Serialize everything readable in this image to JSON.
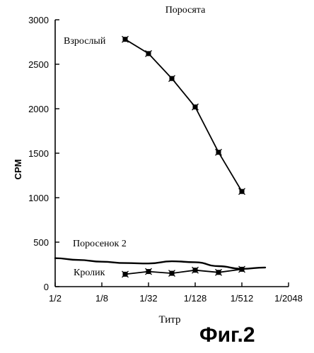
{
  "figure_label": "Фиг.2",
  "chart_data": {
    "type": "line",
    "title": "Поросята",
    "xlabel": "Титр",
    "ylabel": "CPM",
    "x_scale": "log2",
    "x_ticks": [
      "1/2",
      "1/8",
      "1/32",
      "1/128",
      "1/512",
      "1/2048"
    ],
    "y_ticks": [
      "0",
      "500",
      "1000",
      "1500",
      "2000",
      "2500",
      "3000"
    ],
    "ylim": [
      0,
      3000
    ],
    "series": [
      {
        "name": "Взрослый",
        "markers": true,
        "x": [
          "1/16",
          "1/32",
          "1/64",
          "1/128",
          "1/256",
          "1/512"
        ],
        "y": [
          2780,
          2620,
          2340,
          2020,
          1510,
          1070
        ]
      },
      {
        "name": "Поросенок 2",
        "markers": false,
        "x": [
          "1/2",
          "1/4",
          "1/8",
          "1/16",
          "1/32",
          "1/64",
          "1/128",
          "1/256",
          "1/512",
          "1/1024"
        ],
        "y": [
          320,
          300,
          280,
          265,
          260,
          285,
          275,
          230,
          200,
          215
        ]
      },
      {
        "name": "Кролик",
        "markers": true,
        "x": [
          "1/16",
          "1/32",
          "1/64",
          "1/128",
          "1/256",
          "1/512"
        ],
        "y": [
          140,
          170,
          150,
          185,
          160,
          195
        ]
      }
    ]
  }
}
